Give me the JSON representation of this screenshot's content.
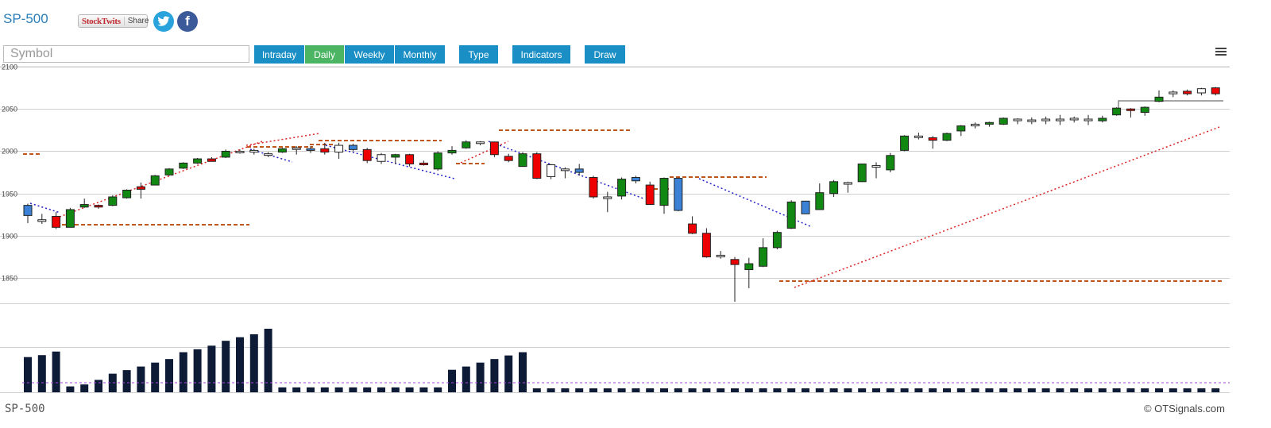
{
  "header": {
    "title": "SP-500",
    "share_logo": "StockTwits",
    "share_label": "Share"
  },
  "search": {
    "placeholder": "Symbol"
  },
  "toolbar": {
    "buttons": [
      {
        "label": "Intraday",
        "active": false
      },
      {
        "label": "Daily",
        "active": true
      },
      {
        "label": "Weekly",
        "active": false
      },
      {
        "label": "Monthly",
        "active": false
      },
      {
        "label": "Type",
        "active": false
      },
      {
        "label": "Indicators",
        "active": false
      },
      {
        "label": "Draw",
        "active": false
      }
    ]
  },
  "footer": {
    "symbol": "SP-500",
    "credit": "© OTSignals.com"
  },
  "colors": {
    "up": "#118811",
    "down": "#ee0000",
    "blue": "#3b82d6",
    "neutral": "#ffffff",
    "volume": "#0d1b36",
    "accent": "#1a8fc5"
  },
  "chart_data": {
    "type": "candlestick",
    "yaxis": {
      "ticks": [
        1850,
        1900,
        1950,
        2000,
        2050,
        2100
      ],
      "ylim": [
        1822,
        2100
      ]
    },
    "candles": [
      {
        "o": 1936,
        "h": 1938,
        "l": 1915,
        "c": 1924,
        "k": "b"
      },
      {
        "o": 1919,
        "h": 1926,
        "l": 1914,
        "c": 1917,
        "k": "n"
      },
      {
        "o": 1923,
        "h": 1928,
        "l": 1908,
        "c": 1910,
        "k": "d"
      },
      {
        "o": 1910,
        "h": 1933,
        "l": 1910,
        "c": 1931,
        "k": "u"
      },
      {
        "o": 1934,
        "h": 1944,
        "l": 1933,
        "c": 1937,
        "k": "u"
      },
      {
        "o": 1934,
        "h": 1937,
        "l": 1932,
        "c": 1936,
        "k": "d"
      },
      {
        "o": 1936,
        "h": 1948,
        "l": 1935,
        "c": 1946,
        "k": "u"
      },
      {
        "o": 1945,
        "h": 1955,
        "l": 1944,
        "c": 1954,
        "k": "u"
      },
      {
        "o": 1958,
        "h": 1963,
        "l": 1944,
        "c": 1955,
        "k": "d"
      },
      {
        "o": 1960,
        "h": 1972,
        "l": 1960,
        "c": 1971,
        "k": "u"
      },
      {
        "o": 1972,
        "h": 1980,
        "l": 1971,
        "c": 1979,
        "k": "u"
      },
      {
        "o": 1980,
        "h": 1987,
        "l": 1979,
        "c": 1986,
        "k": "u"
      },
      {
        "o": 1986,
        "h": 1992,
        "l": 1985,
        "c": 1991,
        "k": "u"
      },
      {
        "o": 1991,
        "h": 1993,
        "l": 1988,
        "c": 1988,
        "k": "d"
      },
      {
        "o": 1993,
        "h": 2002,
        "l": 1992,
        "c": 2000,
        "k": "u"
      },
      {
        "o": 1999,
        "h": 2002,
        "l": 1997,
        "c": 2000,
        "k": "n"
      },
      {
        "o": 2001,
        "h": 2003,
        "l": 1996,
        "c": 1999,
        "k": "n"
      },
      {
        "o": 1997,
        "h": 1999,
        "l": 1993,
        "c": 1997,
        "k": "n"
      },
      {
        "o": 1999,
        "h": 2004,
        "l": 1998,
        "c": 2003,
        "k": "u"
      },
      {
        "o": 2003,
        "h": 2006,
        "l": 1996,
        "c": 2004,
        "k": "n"
      },
      {
        "o": 2003,
        "h": 2006,
        "l": 1998,
        "c": 2001,
        "k": "b"
      },
      {
        "o": 2003,
        "h": 2010,
        "l": 1996,
        "c": 1999,
        "k": "d"
      },
      {
        "o": 1999,
        "h": 2010,
        "l": 1991,
        "c": 2007,
        "k": "n"
      },
      {
        "o": 2007,
        "h": 2009,
        "l": 2000,
        "c": 2002,
        "k": "b"
      },
      {
        "o": 2002,
        "h": 2004,
        "l": 1986,
        "c": 1989,
        "k": "d"
      },
      {
        "o": 1996,
        "h": 1998,
        "l": 1985,
        "c": 1988,
        "k": "n"
      },
      {
        "o": 1993,
        "h": 1997,
        "l": 1985,
        "c": 1996,
        "k": "u"
      },
      {
        "o": 1996,
        "h": 1997,
        "l": 1982,
        "c": 1985,
        "k": "d"
      },
      {
        "o": 1986,
        "h": 1989,
        "l": 1983,
        "c": 1984,
        "k": "d"
      },
      {
        "o": 1979,
        "h": 2000,
        "l": 1977,
        "c": 1998,
        "k": "u"
      },
      {
        "o": 1998,
        "h": 2006,
        "l": 1996,
        "c": 2001,
        "k": "u"
      },
      {
        "o": 2004,
        "h": 2013,
        "l": 2003,
        "c": 2011,
        "k": "u"
      },
      {
        "o": 2010,
        "h": 2012,
        "l": 2007,
        "c": 2011,
        "k": "n"
      },
      {
        "o": 2011,
        "h": 2011,
        "l": 1993,
        "c": 1996,
        "k": "d"
      },
      {
        "o": 1994,
        "h": 1997,
        "l": 1987,
        "c": 1989,
        "k": "d"
      },
      {
        "o": 1982,
        "h": 1999,
        "l": 1982,
        "c": 1997,
        "k": "u"
      },
      {
        "o": 1997,
        "h": 1999,
        "l": 1967,
        "c": 1968,
        "k": "d"
      },
      {
        "o": 1970,
        "h": 1985,
        "l": 1967,
        "c": 1984,
        "k": "n"
      },
      {
        "o": 1979,
        "h": 1981,
        "l": 1968,
        "c": 1978,
        "k": "n"
      },
      {
        "o": 1979,
        "h": 1985,
        "l": 1971,
        "c": 1975,
        "k": "b"
      },
      {
        "o": 1969,
        "h": 1971,
        "l": 1944,
        "c": 1946,
        "k": "d"
      },
      {
        "o": 1946,
        "h": 1952,
        "l": 1928,
        "c": 1944,
        "k": "n"
      },
      {
        "o": 1947,
        "h": 1969,
        "l": 1943,
        "c": 1967,
        "k": "u"
      },
      {
        "o": 1969,
        "h": 1971,
        "l": 1962,
        "c": 1965,
        "k": "b"
      },
      {
        "o": 1960,
        "h": 1964,
        "l": 1937,
        "c": 1937,
        "k": "d"
      },
      {
        "o": 1936,
        "h": 1969,
        "l": 1926,
        "c": 1968,
        "k": "u"
      },
      {
        "o": 1968,
        "h": 1969,
        "l": 1929,
        "c": 1930,
        "k": "b"
      },
      {
        "o": 1914,
        "h": 1923,
        "l": 1902,
        "c": 1903,
        "k": "d"
      },
      {
        "o": 1903,
        "h": 1909,
        "l": 1874,
        "c": 1875,
        "k": "d"
      },
      {
        "o": 1877,
        "h": 1882,
        "l": 1873,
        "c": 1876,
        "k": "n"
      },
      {
        "o": 1872,
        "h": 1875,
        "l": 1822,
        "c": 1866,
        "k": "d"
      },
      {
        "o": 1860,
        "h": 1874,
        "l": 1838,
        "c": 1867,
        "k": "u"
      },
      {
        "o": 1864,
        "h": 1897,
        "l": 1863,
        "c": 1886,
        "k": "u"
      },
      {
        "o": 1886,
        "h": 1906,
        "l": 1884,
        "c": 1904,
        "k": "u"
      },
      {
        "o": 1909,
        "h": 1942,
        "l": 1908,
        "c": 1940,
        "k": "u"
      },
      {
        "o": 1926,
        "h": 1941,
        "l": 1926,
        "c": 1941,
        "k": "b"
      },
      {
        "o": 1931,
        "h": 1962,
        "l": 1931,
        "c": 1951,
        "k": "u"
      },
      {
        "o": 1950,
        "h": 1966,
        "l": 1946,
        "c": 1964,
        "k": "u"
      },
      {
        "o": 1961,
        "h": 1964,
        "l": 1951,
        "c": 1963,
        "k": "n"
      },
      {
        "o": 1964,
        "h": 1985,
        "l": 1964,
        "c": 1985,
        "k": "u"
      },
      {
        "o": 1982,
        "h": 1987,
        "l": 1968,
        "c": 1983,
        "k": "n"
      },
      {
        "o": 1978,
        "h": 1998,
        "l": 1975,
        "c": 1995,
        "k": "u"
      },
      {
        "o": 2001,
        "h": 2019,
        "l": 2000,
        "c": 2018,
        "k": "u"
      },
      {
        "o": 2018,
        "h": 2022,
        "l": 2014,
        "c": 2018,
        "k": "n"
      },
      {
        "o": 2016,
        "h": 2018,
        "l": 2003,
        "c": 2013,
        "k": "d"
      },
      {
        "o": 2013,
        "h": 2022,
        "l": 2012,
        "c": 2021,
        "k": "u"
      },
      {
        "o": 2024,
        "h": 2031,
        "l": 2018,
        "c": 2030,
        "k": "u"
      },
      {
        "o": 2030,
        "h": 2034,
        "l": 2027,
        "c": 2032,
        "k": "n"
      },
      {
        "o": 2032,
        "h": 2035,
        "l": 2029,
        "c": 2034,
        "k": "u"
      },
      {
        "o": 2032,
        "h": 2040,
        "l": 2031,
        "c": 2039,
        "k": "u"
      },
      {
        "o": 2037,
        "h": 2039,
        "l": 2032,
        "c": 2038,
        "k": "n"
      },
      {
        "o": 2037,
        "h": 2040,
        "l": 2032,
        "c": 2037,
        "k": "n"
      },
      {
        "o": 2038,
        "h": 2041,
        "l": 2032,
        "c": 2038,
        "k": "n"
      },
      {
        "o": 2038,
        "h": 2043,
        "l": 2031,
        "c": 2038,
        "k": "n"
      },
      {
        "o": 2039,
        "h": 2041,
        "l": 2034,
        "c": 2039,
        "k": "n"
      },
      {
        "o": 2038,
        "h": 2043,
        "l": 2031,
        "c": 2037,
        "k": "n"
      },
      {
        "o": 2036,
        "h": 2042,
        "l": 2034,
        "c": 2039,
        "k": "u"
      },
      {
        "o": 2043,
        "h": 2052,
        "l": 2042,
        "c": 2051,
        "k": "u"
      },
      {
        "o": 2050,
        "h": 2051,
        "l": 2040,
        "c": 2049,
        "k": "d"
      },
      {
        "o": 2046,
        "h": 2053,
        "l": 2042,
        "c": 2052,
        "k": "u"
      },
      {
        "o": 2059,
        "h": 2072,
        "l": 2058,
        "c": 2064,
        "k": "u"
      },
      {
        "o": 2068,
        "h": 2072,
        "l": 2064,
        "c": 2070,
        "k": "n"
      },
      {
        "o": 2068,
        "h": 2073,
        "l": 2066,
        "c": 2071,
        "k": "d"
      },
      {
        "o": 2069,
        "h": 2075,
        "l": 2066,
        "c": 2074,
        "k": "n"
      },
      {
        "o": 2075,
        "h": 2076,
        "l": 2066,
        "c": 2068,
        "k": "d"
      }
    ],
    "volume": [
      10.8,
      11.4,
      12.5,
      1.8,
      2.4,
      3.8,
      5.7,
      6.8,
      7.9,
      9.1,
      10.2,
      12.3,
      13.2,
      14.3,
      15.8,
      16.9,
      17.8,
      19.5,
      1.5,
      1.5,
      1.5,
      1.5,
      1.5,
      1.5,
      1.5,
      1.5,
      1.5,
      1.5,
      1.5,
      1.5,
      6.9,
      7.9,
      9.1,
      10.2,
      11.3,
      12.3,
      1.2,
      1.2,
      1.2,
      1.2,
      1.2,
      1.2,
      1.2,
      1.2,
      1.2,
      1.2,
      1.2,
      1.2,
      1.2,
      1.2,
      1.2,
      1.2,
      1.2,
      1.2,
      1.2,
      1.2,
      1.2,
      1.2,
      1.2,
      1.2,
      1.2,
      1.2,
      1.2,
      1.2,
      1.2,
      1.2,
      1.2,
      1.2,
      1.2,
      1.2,
      1.2,
      1.2,
      1.2,
      1.2,
      1.2,
      1.2,
      1.2,
      1.2,
      1.2,
      1.2,
      1.2,
      1.2,
      1.2,
      1.2,
      1.2
    ]
  }
}
